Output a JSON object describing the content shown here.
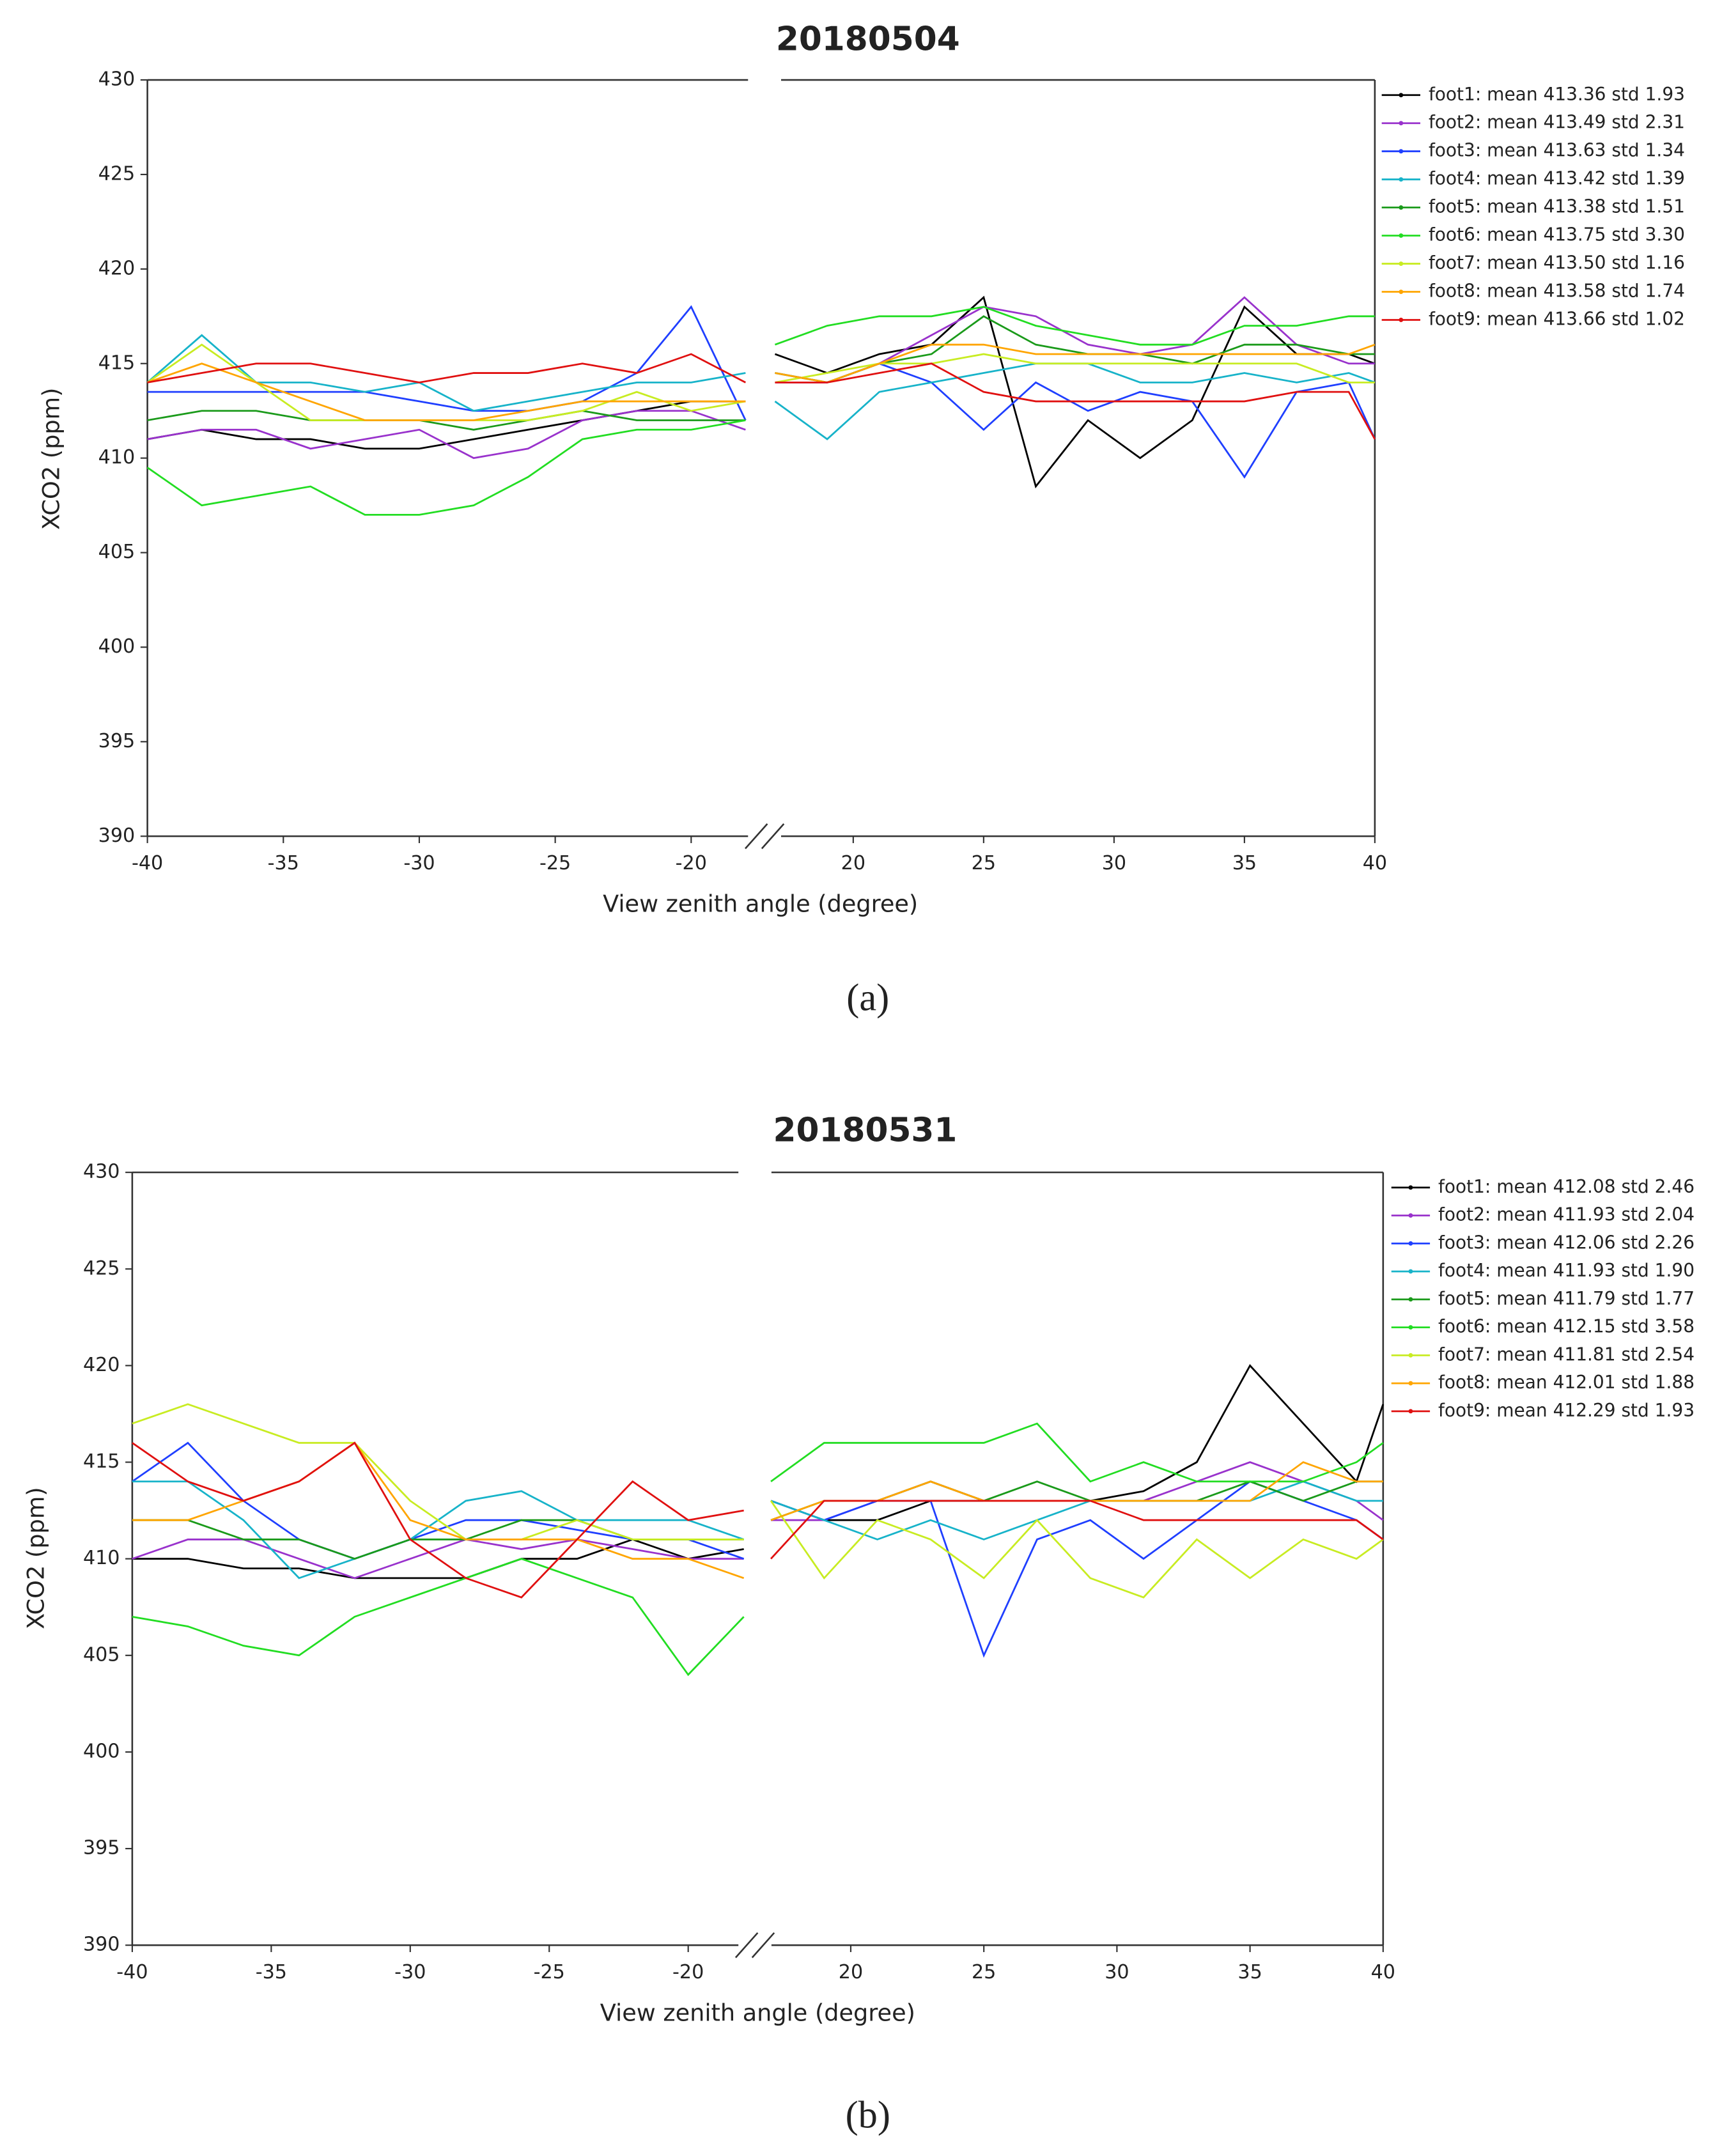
{
  "chart_data": [
    {
      "type": "line",
      "title": "20180504",
      "x_label": "View zenith angle (degree)",
      "y_label": "XCO2 (ppm)",
      "caption": "(a)",
      "xlim": [
        [
          -40,
          -17.3
        ],
        [
          16.6,
          40
        ]
      ],
      "xticks": [
        -40,
        -35,
        -30,
        -25,
        -20,
        20,
        25,
        30,
        35,
        40
      ],
      "ylim": [
        390,
        430
      ],
      "yticks": [
        390,
        395,
        400,
        405,
        410,
        415,
        420,
        425,
        430
      ],
      "grid": false,
      "legend": "outside right",
      "x": [
        -40,
        -38,
        -36,
        -34,
        -32,
        -30,
        -28,
        -26,
        -24,
        -22,
        -20,
        -18,
        17,
        19,
        21,
        23,
        25,
        27,
        29,
        31,
        33,
        35,
        37,
        39,
        40
      ],
      "series": [
        {
          "name": "foot1: mean 413.36 std 1.93",
          "color": "#000000",
          "values": [
            411,
            411.5,
            411,
            411,
            410.5,
            410.5,
            411,
            411.5,
            412,
            412.5,
            413,
            413,
            415.5,
            414.5,
            415.5,
            416,
            418.5,
            408.5,
            412,
            410,
            412,
            418,
            415.5,
            415.5,
            415
          ]
        },
        {
          "name": "foot2: mean 413.49 std 2.31",
          "color": "#9932cc",
          "values": [
            411,
            411.5,
            411.5,
            410.5,
            411,
            411.5,
            410,
            410.5,
            412,
            412.5,
            412.5,
            411.5,
            414,
            414,
            415,
            416.5,
            418,
            417.5,
            416,
            415.5,
            416,
            418.5,
            416,
            415,
            415
          ]
        },
        {
          "name": "foot3: mean 413.63 std 1.34",
          "color": "#1f3fff",
          "values": [
            413.5,
            413.5,
            413.5,
            413.5,
            413.5,
            413,
            412.5,
            412.5,
            413,
            414.5,
            418,
            412,
            414.5,
            414,
            415,
            414,
            411.5,
            414,
            412.5,
            413.5,
            413,
            409,
            413.5,
            414,
            411
          ]
        },
        {
          "name": "foot4: mean 413.42 std 1.39",
          "color": "#17b3c9",
          "values": [
            414,
            416.5,
            414,
            414,
            413.5,
            414,
            412.5,
            413,
            413.5,
            414,
            414,
            414.5,
            413,
            411,
            413.5,
            414,
            414.5,
            415,
            415,
            414,
            414,
            414.5,
            414,
            414.5,
            414
          ]
        },
        {
          "name": "foot5: mean 413.38 std 1.51",
          "color": "#1a9a1a",
          "values": [
            412,
            412.5,
            412.5,
            412,
            412,
            412,
            411.5,
            412,
            412.5,
            412,
            412,
            412,
            414.5,
            414,
            415,
            415.5,
            417.5,
            416,
            415.5,
            415.5,
            415,
            416,
            416,
            415.5,
            415.5
          ]
        },
        {
          "name": "foot6: mean 413.75 std 3.30",
          "color": "#22dd22",
          "values": [
            409.5,
            407.5,
            408,
            408.5,
            407,
            407,
            407.5,
            409,
            411,
            411.5,
            411.5,
            412,
            416,
            417,
            417.5,
            417.5,
            418,
            417,
            416.5,
            416,
            416,
            417,
            417,
            417.5,
            417.5
          ]
        },
        {
          "name": "foot7: mean 413.50 std 1.16",
          "color": "#c8ec22",
          "values": [
            414,
            416,
            414,
            412,
            412,
            412,
            412,
            412,
            412.5,
            413.5,
            412.5,
            413,
            414,
            414.5,
            415,
            415,
            415.5,
            415,
            415,
            415,
            415,
            415,
            415,
            414,
            414
          ]
        },
        {
          "name": "foot8: mean 413.58 std 1.74",
          "color": "#ffa500",
          "values": [
            414,
            415,
            414,
            413,
            412,
            412,
            412,
            412.5,
            413,
            413,
            413,
            413,
            414.5,
            414,
            415,
            416,
            416,
            415.5,
            415.5,
            415.5,
            415.5,
            415.5,
            415.5,
            415.5,
            416
          ]
        },
        {
          "name": "foot9: mean 413.66 std 1.02",
          "color": "#e01010",
          "values": [
            414,
            414.5,
            415,
            415,
            414.5,
            414,
            414.5,
            414.5,
            415,
            414.5,
            415.5,
            414,
            414,
            414,
            414.5,
            415,
            413.5,
            413,
            413,
            413,
            413,
            413,
            413.5,
            413.5,
            411
          ]
        }
      ]
    },
    {
      "type": "line",
      "title": "20180531",
      "x_label": "View zenith angle (degree)",
      "y_label": "XCO2 (ppm)",
      "caption": "(b)",
      "xlim": [
        [
          -40,
          -17.6
        ],
        [
          16.4,
          40
        ]
      ],
      "xticks": [
        -40,
        -35,
        -30,
        -25,
        -20,
        20,
        25,
        30,
        35,
        40
      ],
      "ylim": [
        390,
        430
      ],
      "yticks": [
        390,
        395,
        400,
        405,
        410,
        415,
        420,
        425,
        430
      ],
      "grid": false,
      "legend": "outside right",
      "x": [
        -40,
        -38,
        -36,
        -34,
        -32,
        -30,
        -28,
        -26,
        -24,
        -22,
        -20,
        -18,
        17,
        19,
        21,
        23,
        25,
        27,
        29,
        31,
        33,
        35,
        37,
        39,
        40
      ],
      "series": [
        {
          "name": "foot1: mean 412.08 std 2.46",
          "color": "#000000",
          "values": [
            410,
            410,
            409.5,
            409.5,
            409,
            409,
            409,
            410,
            410,
            411,
            410,
            410.5,
            413,
            412,
            412,
            413,
            413,
            413,
            413,
            413.5,
            415,
            420,
            417,
            414,
            418
          ]
        },
        {
          "name": "foot2: mean 411.93 std 2.04",
          "color": "#9932cc",
          "values": [
            410,
            411,
            411,
            410,
            409,
            410,
            411,
            410.5,
            411,
            410.5,
            410,
            410,
            412,
            412,
            413,
            414,
            413,
            413,
            413,
            413,
            414,
            415,
            414,
            413,
            412
          ]
        },
        {
          "name": "foot3: mean 412.06 std 2.26",
          "color": "#1f3fff",
          "values": [
            414,
            416,
            413,
            411,
            410,
            411,
            412,
            412,
            411.5,
            411,
            411,
            410,
            413,
            412,
            413,
            413,
            405,
            411,
            412,
            410,
            412,
            414,
            413,
            412,
            411
          ]
        },
        {
          "name": "foot4: mean 411.93 std 1.90",
          "color": "#17b3c9",
          "values": [
            414,
            414,
            412,
            409,
            410,
            411,
            413,
            413.5,
            412,
            412,
            412,
            411,
            413,
            412,
            411,
            412,
            411,
            412,
            413,
            413,
            413,
            413,
            414,
            413,
            413
          ]
        },
        {
          "name": "foot5: mean 411.79 std 1.77",
          "color": "#1a9a1a",
          "values": [
            412,
            412,
            411,
            411,
            410,
            411,
            411,
            412,
            412,
            411,
            411,
            411,
            412,
            413,
            413,
            414,
            413,
            414,
            413,
            413,
            413,
            414,
            413,
            414,
            414
          ]
        },
        {
          "name": "foot6: mean 412.15 std 3.58",
          "color": "#22dd22",
          "values": [
            407,
            406.5,
            405.5,
            405,
            407,
            408,
            409,
            410,
            409,
            408,
            404,
            407,
            414,
            416,
            416,
            416,
            416,
            417,
            414,
            415,
            414,
            414,
            414,
            415,
            416
          ]
        },
        {
          "name": "foot7: mean 411.81 std 2.54",
          "color": "#c8ec22",
          "values": [
            417,
            418,
            417,
            416,
            416,
            413,
            411,
            411,
            412,
            411,
            411,
            411,
            413,
            409,
            412,
            411,
            409,
            412,
            409,
            408,
            411,
            409,
            411,
            410,
            411
          ]
        },
        {
          "name": "foot8: mean 412.01 std 1.88",
          "color": "#ffa500",
          "values": [
            412,
            412,
            413,
            414,
            416,
            412,
            411,
            411,
            411,
            410,
            410,
            409,
            412,
            413,
            413,
            414,
            413,
            413,
            413,
            413,
            413,
            413,
            415,
            414,
            414
          ]
        },
        {
          "name": "foot9: mean 412.29 std 1.93",
          "color": "#e01010",
          "values": [
            416,
            414,
            413,
            414,
            416,
            411,
            409,
            408,
            411,
            414,
            412,
            412.5,
            410,
            413,
            413,
            413,
            413,
            413,
            413,
            412,
            412,
            412,
            412,
            412,
            411
          ]
        }
      ]
    }
  ]
}
